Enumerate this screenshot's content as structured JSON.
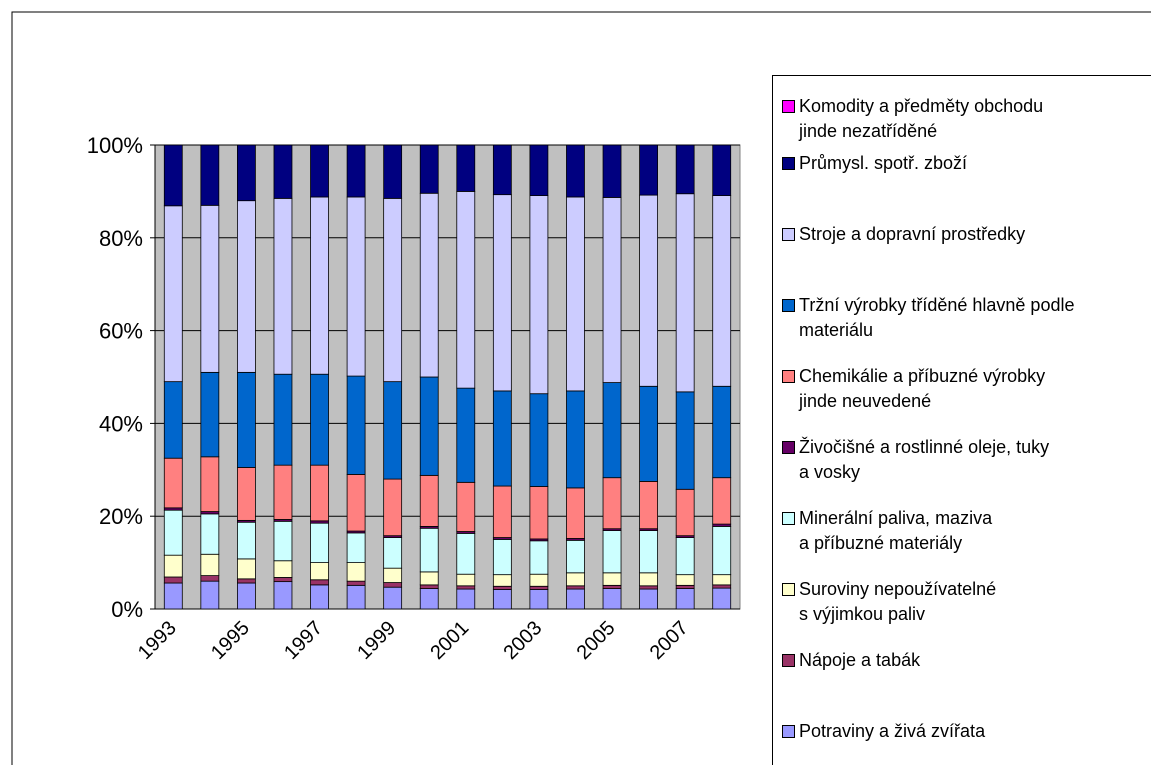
{
  "chart_data": {
    "type": "stacked_bar",
    "categories": [
      "1993",
      null,
      "1995",
      null,
      "1997",
      null,
      "1999",
      null,
      "2001",
      null,
      "2003",
      null,
      "2005",
      null,
      "2007",
      null
    ],
    "ylim": [
      0,
      100
    ],
    "yticks": [
      {
        "value": 0,
        "label": "0%"
      },
      {
        "value": 20,
        "label": "20%"
      },
      {
        "value": 40,
        "label": "40%"
      },
      {
        "value": 60,
        "label": "60%"
      },
      {
        "value": 80,
        "label": "80%"
      },
      {
        "value": 100,
        "label": "100%"
      }
    ],
    "grid": true,
    "legend": "right",
    "series": [
      {
        "name": "Potraviny a živá zvířata",
        "color": "#9999ff",
        "values": [
          5.6,
          6.0,
          5.6,
          5.9,
          5.2,
          5.1,
          4.7,
          4.4,
          4.3,
          4.2,
          4.2,
          4.3,
          4.4,
          4.3,
          4.4,
          4.5
        ]
      },
      {
        "name": "Nápoje a tabák",
        "color": "#993366",
        "values": [
          1.3,
          1.2,
          0.9,
          0.9,
          1.1,
          0.9,
          1.0,
          0.8,
          0.7,
          0.7,
          0.7,
          0.7,
          0.7,
          0.7,
          0.7,
          0.7
        ]
      },
      {
        "name": "Suroviny nepoužívatelné\ns výjimkou paliv",
        "color": "#ffffcc",
        "values": [
          4.7,
          4.6,
          4.3,
          3.6,
          3.7,
          4.0,
          3.1,
          2.8,
          2.5,
          2.5,
          2.6,
          2.8,
          2.7,
          2.8,
          2.3,
          2.2
        ]
      },
      {
        "name": "Minerální paliva, maziva\na příbuzné materiály",
        "color": "#ccffff",
        "values": [
          9.7,
          8.7,
          7.9,
          8.5,
          8.5,
          6.4,
          6.6,
          9.4,
          8.8,
          7.6,
          7.2,
          7.0,
          9.1,
          9.1,
          8.0,
          10.4
        ]
      },
      {
        "name": "Živočišné a rostlinné oleje, tuky\na vosky",
        "color": "#660066",
        "values": [
          0.5,
          0.5,
          0.4,
          0.4,
          0.5,
          0.4,
          0.4,
          0.4,
          0.4,
          0.4,
          0.4,
          0.4,
          0.4,
          0.4,
          0.4,
          0.5
        ]
      },
      {
        "name": "Chemikálie a příbuzné výrobky\njinde neuvedené",
        "color": "#ff8080",
        "values": [
          10.7,
          11.8,
          11.4,
          11.7,
          12.0,
          12.2,
          12.2,
          11.0,
          10.6,
          11.1,
          11.3,
          10.9,
          11.0,
          10.2,
          10.0,
          10.0
        ]
      },
      {
        "name": "Tržní výrobky tříděné hlavně podle\nmateriálu",
        "color": "#0066cc",
        "values": [
          16.5,
          18.2,
          20.5,
          19.6,
          19.6,
          21.2,
          21.0,
          21.2,
          20.3,
          20.5,
          20.0,
          20.9,
          20.5,
          20.5,
          21.0,
          19.7
        ]
      },
      {
        "name": "Stroje a dopravní prostředky",
        "color": "#ccccff",
        "values": [
          37.9,
          36.0,
          37.0,
          37.9,
          38.2,
          38.6,
          39.5,
          39.6,
          42.4,
          42.3,
          42.7,
          41.8,
          39.9,
          41.2,
          42.7,
          41.1
        ]
      },
      {
        "name": "Průmysl. spotř. zboží",
        "color": "#000080",
        "values": [
          13.1,
          13.0,
          12.0,
          11.5,
          11.2,
          11.2,
          11.5,
          10.4,
          10.0,
          10.7,
          10.9,
          11.2,
          11.3,
          10.8,
          10.5,
          10.9
        ]
      },
      {
        "name": "Komodity a předměty obchodu\njinde nezatříděné",
        "color": "#ff00ff",
        "values": [
          0,
          0,
          0,
          0,
          0,
          0,
          0,
          0,
          0,
          0,
          0,
          0,
          0,
          0,
          0,
          0
        ]
      }
    ]
  }
}
